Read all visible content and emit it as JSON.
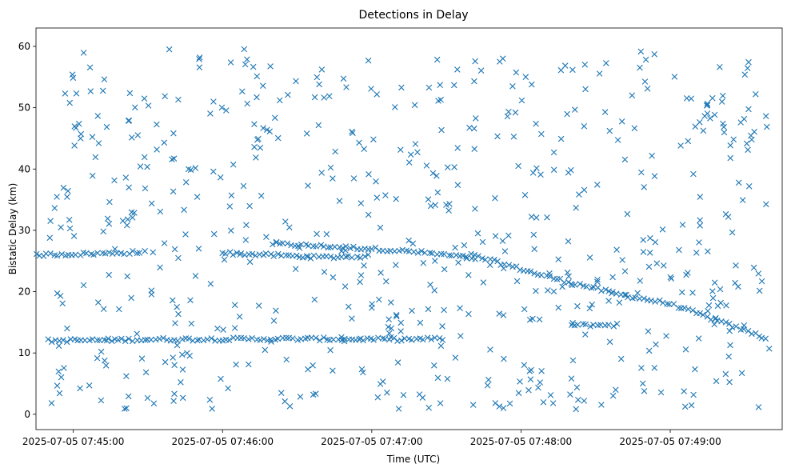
{
  "chart_data": {
    "type": "scatter",
    "title": "Detections in Delay",
    "xlabel": "Time (UTC)",
    "ylabel": "Bistatic Delay (km)",
    "marker": "x",
    "color": "#1f77b4",
    "grid": false,
    "legend": "none",
    "xlim": [
      "2025-07-05 07:44:45",
      "2025-07-05 07:49:45"
    ],
    "ylim": [
      -2.5,
      63
    ],
    "x_ticks": [
      "2025-07-05 07:45:00",
      "2025-07-05 07:46:00",
      "2025-07-05 07:47:00",
      "2025-07-05 07:48:00",
      "2025-07-05 07:49:00"
    ],
    "y_ticks": [
      0,
      10,
      20,
      30,
      40,
      50,
      60
    ],
    "tracks": [
      {
        "points": [
          [
            "2025-07-05 07:46:20",
            27.8
          ],
          [
            "2025-07-05 07:47:00",
            27.0
          ],
          [
            "2025-07-05 07:47:20",
            26.4
          ],
          [
            "2025-07-05 07:47:40",
            25.5
          ]
        ]
      },
      {
        "points": [
          [
            "2025-07-05 07:47:40",
            26.0
          ],
          [
            "2025-07-05 07:48:10",
            22.5
          ],
          [
            "2025-07-05 07:48:40",
            19.5
          ],
          [
            "2025-07-05 07:49:00",
            18.0
          ],
          [
            "2025-07-05 07:49:40",
            12.2
          ]
        ]
      },
      {
        "points": [
          [
            "2025-07-05 07:46:00",
            26.3
          ],
          [
            "2025-07-05 07:46:40",
            25.6
          ],
          [
            "2025-07-05 07:47:00",
            25.8
          ]
        ]
      },
      {
        "points": [
          [
            "2025-07-05 07:44:45",
            26.0
          ],
          [
            "2025-07-05 07:45:10",
            26.2
          ],
          [
            "2025-07-05 07:45:30",
            26.5
          ]
        ]
      },
      {
        "points": [
          [
            "2025-07-05 07:44:50",
            12.0
          ],
          [
            "2025-07-05 07:45:30",
            12.2
          ],
          [
            "2025-07-05 07:46:30",
            12.3
          ],
          [
            "2025-07-05 07:47:10",
            12.2
          ],
          [
            "2025-07-05 07:47:30",
            12.3
          ]
        ]
      },
      {
        "points": [
          [
            "2025-07-05 07:48:20",
            14.5
          ],
          [
            "2025-07-05 07:48:40",
            14.6
          ]
        ]
      }
    ],
    "clutter_count": 620
  }
}
